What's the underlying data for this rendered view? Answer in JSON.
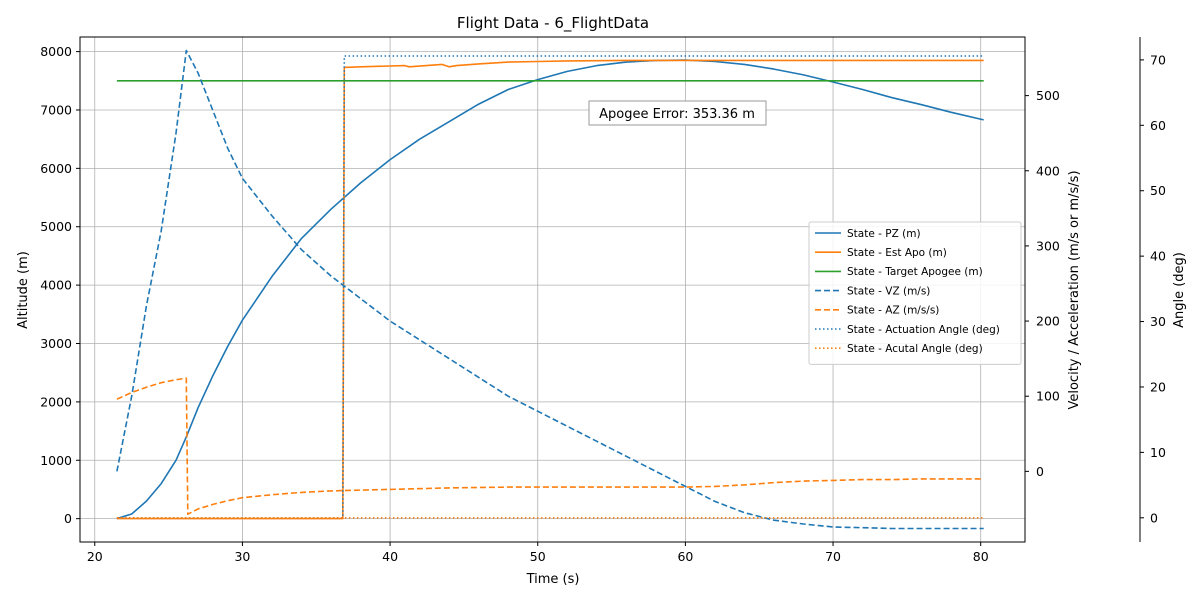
{
  "chart_data": {
    "type": "line",
    "title": "Flight Data - 6_FlightData",
    "xlabel": "Time (s)",
    "ylabel_left": "Altitude (m)",
    "ylabel_right1": "Velocity / Acceleration (m/s or m/s/s)",
    "ylabel_right2": "Angle (deg)",
    "xlim": [
      19,
      83
    ],
    "ylim_left": [
      -400,
      8250
    ],
    "ylim_right1": [
      -94,
      578
    ],
    "ylim_right2": [
      -3.7,
      73.5
    ],
    "xticks": [
      20,
      30,
      40,
      50,
      60,
      70,
      80
    ],
    "yticks_left": [
      0,
      1000,
      2000,
      3000,
      4000,
      5000,
      6000,
      7000,
      8000
    ],
    "yticks_right1": [
      0,
      100,
      200,
      300,
      400,
      500
    ],
    "yticks_right2": [
      0,
      10,
      20,
      30,
      40,
      50,
      60,
      70
    ],
    "grid": true,
    "legend_position": "center-right",
    "annotation": "Apogee Error: 353.36 m",
    "series": [
      {
        "name": "State - PZ (m)",
        "axis": "left",
        "color": "#1f77b4",
        "style": "solid",
        "x": [
          21.5,
          22.5,
          23.5,
          24.5,
          25.5,
          26.2,
          27,
          28,
          29,
          30,
          32,
          34,
          36,
          38,
          40,
          42,
          44,
          46,
          48,
          50,
          52,
          54,
          56,
          58,
          60,
          62,
          64,
          66,
          68,
          70,
          72,
          74,
          76,
          78,
          80.2
        ],
        "y": [
          0,
          80,
          300,
          600,
          1000,
          1400,
          1900,
          2450,
          2950,
          3400,
          4150,
          4800,
          5300,
          5750,
          6150,
          6500,
          6800,
          7100,
          7350,
          7520,
          7660,
          7760,
          7820,
          7850,
          7855,
          7830,
          7780,
          7700,
          7600,
          7480,
          7350,
          7210,
          7090,
          6960,
          6830
        ]
      },
      {
        "name": "State - Est Apo (m)",
        "axis": "left",
        "color": "#ff7f0e",
        "style": "solid",
        "x": [
          21.5,
          36.8,
          36.9,
          38,
          41,
          41.3,
          43.5,
          44,
          44.5,
          46,
          48,
          50,
          52,
          56,
          60,
          70,
          80.2
        ],
        "y": [
          0,
          0,
          7730,
          7740,
          7760,
          7740,
          7780,
          7740,
          7760,
          7790,
          7820,
          7830,
          7840,
          7850,
          7850,
          7850,
          7850
        ]
      },
      {
        "name": "State - Target Apogee (m)",
        "axis": "left",
        "color": "#2ca02c",
        "style": "solid",
        "x": [
          21.5,
          80.2
        ],
        "y": [
          7500,
          7500
        ]
      },
      {
        "name": "State - VZ (m/s)",
        "axis": "right1",
        "color": "#1f77b4",
        "style": "dashed",
        "x": [
          21.5,
          22.5,
          23.5,
          24.5,
          25.5,
          26.2,
          27,
          28,
          29,
          30,
          32,
          34,
          36,
          38,
          40,
          42,
          44,
          46,
          48,
          50,
          52,
          54,
          56,
          58,
          60,
          62,
          64,
          66,
          68,
          70,
          72,
          74,
          76,
          78,
          80.2
        ],
        "y": [
          0,
          100,
          220,
          320,
          450,
          560,
          530,
          480,
          430,
          390,
          340,
          295,
          260,
          230,
          200,
          175,
          150,
          125,
          100,
          80,
          60,
          40,
          20,
          0,
          -20,
          -40,
          -55,
          -65,
          -70,
          -74,
          -75,
          -76,
          -76,
          -76,
          -76
        ]
      },
      {
        "name": "State - AZ (m/s/s)",
        "axis": "right1",
        "color": "#ff7f0e",
        "style": "dashed",
        "x": [
          21.5,
          22.5,
          23.5,
          24.5,
          25.5,
          26.2,
          26.3,
          27,
          28,
          29,
          30,
          32,
          34,
          36,
          38,
          40,
          44,
          48,
          52,
          56,
          60,
          62,
          64,
          66,
          68,
          70,
          72,
          74,
          76,
          78,
          80.2
        ],
        "y": [
          96,
          105,
          112,
          118,
          122,
          124,
          -57,
          -50,
          -44,
          -39,
          -35,
          -31,
          -28,
          -26,
          -25,
          -24,
          -22,
          -21,
          -21,
          -21,
          -21,
          -20,
          -18,
          -15,
          -13,
          -12,
          -11,
          -11,
          -10,
          -10,
          -10
        ]
      },
      {
        "name": "State - Actuation Angle (deg)",
        "axis": "right2",
        "color": "#1f77b4",
        "style": "dotted",
        "x": [
          21.5,
          36.8,
          36.9,
          80.2
        ],
        "y": [
          0,
          0,
          70.6,
          70.6
        ]
      },
      {
        "name": "State - Acutal Angle (deg)",
        "axis": "right2",
        "color": "#ff7f0e",
        "style": "dotted",
        "x": [
          21.5,
          80.2
        ],
        "y": [
          0,
          0
        ]
      }
    ]
  }
}
